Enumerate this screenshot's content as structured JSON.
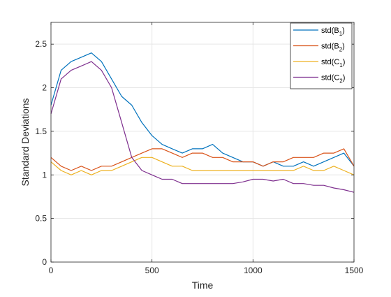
{
  "chart_data": {
    "type": "line",
    "xlabel": "Time",
    "ylabel": "Standard Deviations",
    "xlim": [
      0,
      1500
    ],
    "ylim": [
      0,
      2.75
    ],
    "xticks": [
      0,
      500,
      1000,
      1500
    ],
    "yticks": [
      0,
      0.5,
      1,
      1.5,
      2,
      2.5
    ],
    "xtick_labels": [
      "0",
      "500",
      "1000",
      "1500"
    ],
    "ytick_labels": [
      "0",
      "0.5",
      "1",
      "1.5",
      "2",
      "2.5"
    ],
    "grid": true,
    "legend_position": "top-right",
    "series": [
      {
        "name": "std(B₁)",
        "legend_base": "std(B",
        "legend_sub": "1",
        "legend_close": ")",
        "color": "#0072BD",
        "x": [
          0,
          50,
          100,
          150,
          200,
          250,
          300,
          350,
          400,
          450,
          500,
          550,
          600,
          650,
          700,
          750,
          800,
          850,
          900,
          950,
          1000,
          1050,
          1100,
          1150,
          1200,
          1250,
          1300,
          1350,
          1400,
          1450,
          1500
        ],
        "y": [
          1.8,
          2.2,
          2.3,
          2.35,
          2.4,
          2.3,
          2.1,
          1.9,
          1.8,
          1.6,
          1.45,
          1.35,
          1.3,
          1.25,
          1.3,
          1.3,
          1.35,
          1.25,
          1.2,
          1.15,
          1.15,
          1.1,
          1.15,
          1.1,
          1.1,
          1.15,
          1.1,
          1.15,
          1.2,
          1.25,
          1.1
        ]
      },
      {
        "name": "std(B₂)",
        "legend_base": "std(B",
        "legend_sub": "2",
        "legend_close": ")",
        "color": "#D95319",
        "x": [
          0,
          50,
          100,
          150,
          200,
          250,
          300,
          350,
          400,
          450,
          500,
          550,
          600,
          650,
          700,
          750,
          800,
          850,
          900,
          950,
          1000,
          1050,
          1100,
          1150,
          1200,
          1250,
          1300,
          1350,
          1400,
          1450,
          1500
        ],
        "y": [
          1.2,
          1.1,
          1.05,
          1.1,
          1.05,
          1.1,
          1.1,
          1.15,
          1.2,
          1.25,
          1.3,
          1.3,
          1.25,
          1.2,
          1.25,
          1.25,
          1.2,
          1.2,
          1.15,
          1.15,
          1.15,
          1.1,
          1.15,
          1.15,
          1.2,
          1.2,
          1.2,
          1.25,
          1.25,
          1.3,
          1.1
        ]
      },
      {
        "name": "std(C₁)",
        "legend_base": "std(C",
        "legend_sub": "1",
        "legend_close": ")",
        "color": "#EDB120",
        "x": [
          0,
          50,
          100,
          150,
          200,
          250,
          300,
          350,
          400,
          450,
          500,
          550,
          600,
          650,
          700,
          750,
          800,
          850,
          900,
          950,
          1000,
          1050,
          1100,
          1150,
          1200,
          1250,
          1300,
          1350,
          1400,
          1450,
          1500
        ],
        "y": [
          1.15,
          1.05,
          1.0,
          1.05,
          1.0,
          1.05,
          1.05,
          1.1,
          1.15,
          1.2,
          1.2,
          1.15,
          1.1,
          1.1,
          1.05,
          1.05,
          1.05,
          1.05,
          1.05,
          1.05,
          1.05,
          1.05,
          1.05,
          1.05,
          1.05,
          1.1,
          1.05,
          1.05,
          1.1,
          1.05,
          1.0
        ]
      },
      {
        "name": "std(C₂)",
        "legend_base": "std(C",
        "legend_sub": "2",
        "legend_close": ")",
        "color": "#7E2F8E",
        "x": [
          0,
          50,
          100,
          150,
          200,
          250,
          300,
          350,
          400,
          450,
          500,
          550,
          600,
          650,
          700,
          750,
          800,
          850,
          900,
          950,
          1000,
          1050,
          1100,
          1150,
          1200,
          1250,
          1300,
          1350,
          1400,
          1450,
          1500
        ],
        "y": [
          1.7,
          2.1,
          2.2,
          2.25,
          2.3,
          2.2,
          2.0,
          1.6,
          1.2,
          1.05,
          1.0,
          0.95,
          0.95,
          0.9,
          0.9,
          0.9,
          0.9,
          0.9,
          0.9,
          0.92,
          0.95,
          0.95,
          0.93,
          0.95,
          0.9,
          0.9,
          0.88,
          0.88,
          0.85,
          0.83,
          0.8
        ]
      }
    ]
  }
}
